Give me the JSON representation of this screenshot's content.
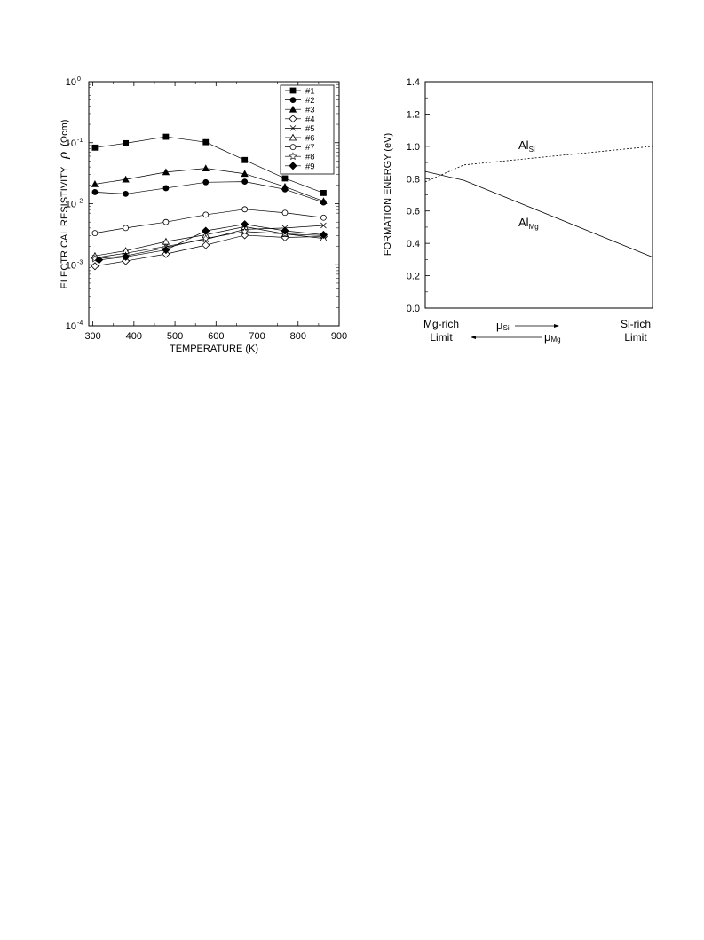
{
  "chart_data": [
    {
      "type": "line",
      "xlabel": "TEMPERATURE (K)",
      "ylabel_prefix": "ELECTRICAL RESISTIVITY",
      "ylabel_symbol": "ρ",
      "ylabel_unit": "(Ωcm)",
      "xlim": [
        290,
        900
      ],
      "ylim": [
        0.0001,
        1
      ],
      "yscale": "log",
      "xticks": [
        300,
        400,
        500,
        600,
        700,
        800,
        900
      ],
      "yticks": [
        {
          "value": 1,
          "base": "10",
          "exp": "0"
        },
        {
          "value": 0.1,
          "base": "10",
          "exp": "-1"
        },
        {
          "value": 0.01,
          "base": "10",
          "exp": "-2"
        },
        {
          "value": 0.001,
          "base": "10",
          "exp": "-3"
        },
        {
          "value": 0.0001,
          "base": "10",
          "exp": "-4"
        }
      ],
      "legend_position": "top-right",
      "series": [
        {
          "name": "#1",
          "marker": "square-filled",
          "x": [
            305,
            380,
            478,
            575,
            670,
            768,
            862
          ],
          "y": [
            0.083,
            0.098,
            0.125,
            0.102,
            0.052,
            0.026,
            0.015
          ]
        },
        {
          "name": "#2",
          "marker": "circle-filled",
          "x": [
            305,
            380,
            478,
            575,
            670,
            768,
            862
          ],
          "y": [
            0.0155,
            0.0145,
            0.018,
            0.0225,
            0.023,
            0.0172,
            0.0105
          ]
        },
        {
          "name": "#3",
          "marker": "triangle-filled",
          "x": [
            305,
            380,
            478,
            575,
            670,
            768,
            862
          ],
          "y": [
            0.021,
            0.025,
            0.033,
            0.038,
            0.031,
            0.019,
            0.011
          ]
        },
        {
          "name": "#4",
          "marker": "diamond-open",
          "x": [
            305,
            380,
            478,
            575,
            670,
            768,
            862
          ],
          "y": [
            0.00095,
            0.00115,
            0.0015,
            0.0021,
            0.00305,
            0.0028,
            0.0029
          ]
        },
        {
          "name": "#5",
          "marker": "x",
          "x": [
            305,
            380,
            478,
            575,
            670,
            768,
            862
          ],
          "y": [
            0.0013,
            0.00155,
            0.002,
            0.0026,
            0.0038,
            0.004,
            0.0044
          ]
        },
        {
          "name": "#6",
          "marker": "triangle-open",
          "x": [
            305,
            380,
            478,
            575,
            670,
            768,
            862
          ],
          "y": [
            0.0014,
            0.0017,
            0.0024,
            0.0031,
            0.0042,
            0.0032,
            0.0027
          ]
        },
        {
          "name": "#7",
          "marker": "circle-open",
          "x": [
            305,
            380,
            478,
            575,
            670,
            768,
            862
          ],
          "y": [
            0.0033,
            0.004,
            0.005,
            0.0066,
            0.0081,
            0.0071,
            0.0059
          ]
        },
        {
          "name": "#8",
          "marker": "star-open",
          "x": [
            305,
            380,
            478,
            575,
            670,
            768,
            862
          ],
          "y": [
            0.00125,
            0.0014,
            0.0019,
            0.0027,
            0.0035,
            0.0032,
            0.003
          ]
        },
        {
          "name": "#9",
          "marker": "diamond-filled",
          "x": [
            315,
            380,
            478,
            575,
            670,
            768,
            862
          ],
          "y": [
            0.0012,
            0.00135,
            0.00175,
            0.0036,
            0.0046,
            0.0036,
            0.0031
          ]
        }
      ]
    },
    {
      "type": "line",
      "ylabel": "FORMATION ENERGY  (eV)",
      "ylim": [
        0,
        1.4
      ],
      "yticks": [
        0.0,
        0.2,
        0.4,
        0.6,
        0.8,
        1.0,
        1.2,
        1.4
      ],
      "ytick_labels": [
        "0.0",
        "0.2",
        "0.4",
        "0.6",
        "0.8",
        "1.0",
        "1.2",
        "1.4"
      ],
      "xlim": [
        0,
        1
      ],
      "xlabel_left": [
        "Mg-rich",
        "Limit"
      ],
      "xlabel_right": [
        "Si-rich",
        "Limit"
      ],
      "arrow_si": {
        "symbol": "μ",
        "sub": "Si"
      },
      "arrow_mg": {
        "symbol": "μ",
        "sub": "Mg"
      },
      "series": [
        {
          "label_main": "Al",
          "label_sub": "Si",
          "style": "dashed",
          "x": [
            0,
            0.17,
            1
          ],
          "y": [
            0.78,
            0.885,
            1.0
          ]
        },
        {
          "label_main": "Al",
          "label_sub": "Mg",
          "style": "solid",
          "x": [
            0,
            0.17,
            1
          ],
          "y": [
            0.845,
            0.79,
            0.315
          ]
        }
      ]
    }
  ]
}
